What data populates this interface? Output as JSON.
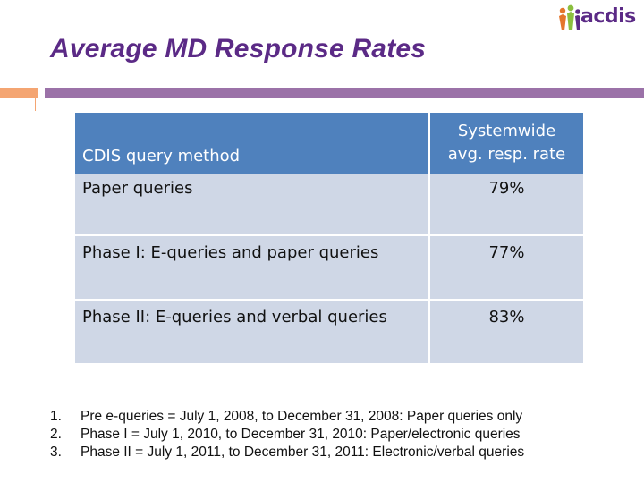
{
  "logo": {
    "text": "acdis"
  },
  "slide": {
    "title": "Average MD Response Rates"
  },
  "table": {
    "headers": {
      "method": "CDIS query method",
      "rate_line1": "Systemwide",
      "rate_line2": "avg. resp. rate"
    },
    "rows": [
      {
        "method": "Paper queries",
        "rate": "79%"
      },
      {
        "method": "Phase I: E-queries and paper queries",
        "rate": "77%"
      },
      {
        "method": "Phase II: E-queries and verbal queries",
        "rate": "83%"
      }
    ]
  },
  "notes": [
    {
      "num": "1.",
      "text": "Pre e-queries = July 1, 2008, to December 31, 2008: Paper queries only"
    },
    {
      "num": "2.",
      "text": "Phase I = July 1, 2010, to December 31, 2010: Paper/electronic queries"
    },
    {
      "num": "3.",
      "text": "Phase II = July 1, 2011, to December 31, 2011: Electronic/verbal queries"
    }
  ],
  "colors": {
    "title": "#5b2a86",
    "header": "#4f81bd",
    "row": "#cfd7e6",
    "rule_purple": "#9b72a8",
    "rule_orange": "#f4a572"
  }
}
